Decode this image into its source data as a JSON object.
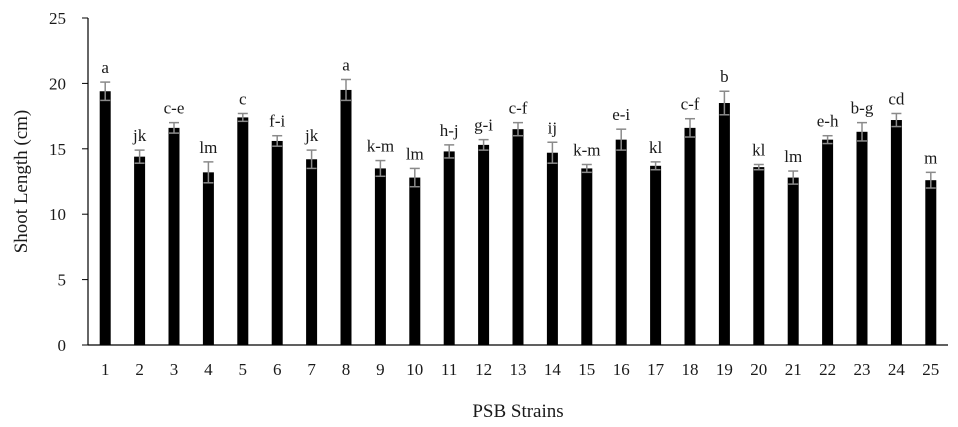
{
  "chart_data": {
    "type": "bar",
    "xlabel": "PSB Strains",
    "ylabel": "Shoot Length (cm)",
    "ylim": [
      0,
      25
    ],
    "yticks": [
      0,
      5,
      10,
      15,
      20,
      25
    ],
    "grid": false,
    "categories": [
      "1",
      "2",
      "3",
      "4",
      "5",
      "6",
      "7",
      "8",
      "9",
      "10",
      "11",
      "12",
      "13",
      "14",
      "15",
      "16",
      "17",
      "18",
      "19",
      "20",
      "21",
      "22",
      "23",
      "24",
      "25"
    ],
    "values": [
      19.4,
      14.4,
      16.6,
      13.2,
      17.4,
      15.6,
      14.2,
      19.5,
      13.5,
      12.8,
      14.8,
      15.3,
      16.5,
      14.7,
      13.5,
      15.7,
      13.7,
      16.6,
      18.5,
      13.6,
      12.8,
      15.7,
      16.3,
      17.2,
      12.6
    ],
    "errors": [
      0.7,
      0.5,
      0.4,
      0.8,
      0.3,
      0.4,
      0.7,
      0.8,
      0.6,
      0.7,
      0.5,
      0.4,
      0.5,
      0.8,
      0.3,
      0.8,
      0.3,
      0.7,
      0.9,
      0.2,
      0.5,
      0.3,
      0.7,
      0.5,
      0.6
    ],
    "significance_labels": [
      "a",
      "jk",
      "c-e",
      "lm",
      "c",
      "f-i",
      "jk",
      "a",
      "k-m",
      "lm",
      "h-j",
      "g-i",
      "c-f",
      "ij",
      "k-m",
      "e-i",
      "kl",
      "c-f",
      "b",
      "kl",
      "lm",
      "e-h",
      "b-g",
      "cd",
      "m"
    ],
    "bar_color": "#000000",
    "error_color": "#8a8a8a"
  }
}
